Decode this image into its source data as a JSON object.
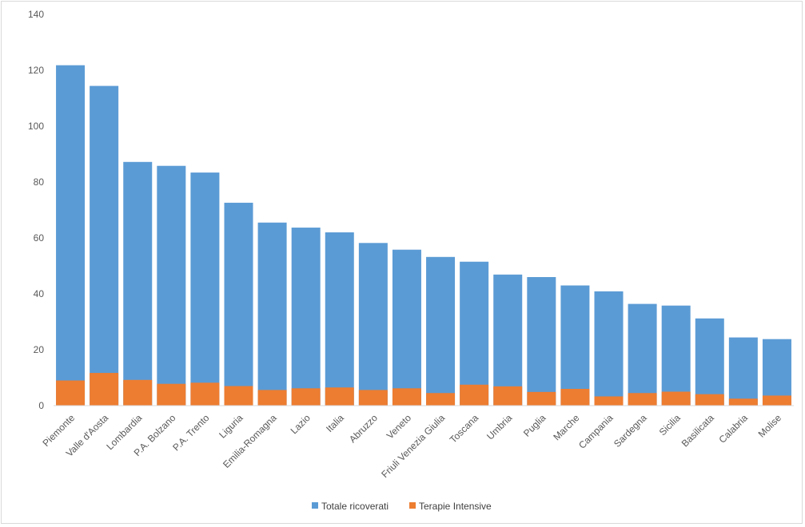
{
  "chart_data": {
    "type": "bar",
    "stacked": false,
    "overlapping": true,
    "categories": [
      "Piemonte",
      "Valle d'Aosta",
      "Lombardia",
      "P.A. Bolzano",
      "P.A. Trento",
      "Liguria",
      "Emilia-Romagna",
      "Lazio",
      "Italia",
      "Abruzzo",
      "Veneto",
      "Friuli Venezia Giulia",
      "Toscana",
      "Umbria",
      "Puglia",
      "Marche",
      "Campania",
      "Sardegna",
      "Sicilia",
      "Basilicata",
      "Calabria",
      "Molise"
    ],
    "series": [
      {
        "name": "Totale ricoverati",
        "color": "#5b9bd5",
        "values": [
          121.8,
          114.4,
          87.2,
          85.8,
          83.4,
          72.6,
          65.5,
          63.7,
          62.0,
          58.2,
          55.8,
          53.2,
          51.5,
          46.9,
          46.0,
          43.0,
          40.9,
          36.4,
          35.8,
          31.2,
          24.4,
          23.8
        ]
      },
      {
        "name": "Terapie Intensive",
        "color": "#ed7d31",
        "values": [
          9.0,
          11.7,
          9.2,
          7.8,
          8.2,
          7.0,
          5.6,
          6.2,
          6.5,
          5.6,
          6.2,
          4.5,
          7.5,
          6.9,
          4.9,
          6.0,
          3.3,
          4.5,
          5.0,
          4.1,
          2.5,
          3.6
        ]
      }
    ],
    "ylim": [
      0,
      140
    ],
    "yticks": [
      0,
      20,
      40,
      60,
      80,
      100,
      120,
      140
    ],
    "grid": false,
    "legend": "bottom"
  }
}
